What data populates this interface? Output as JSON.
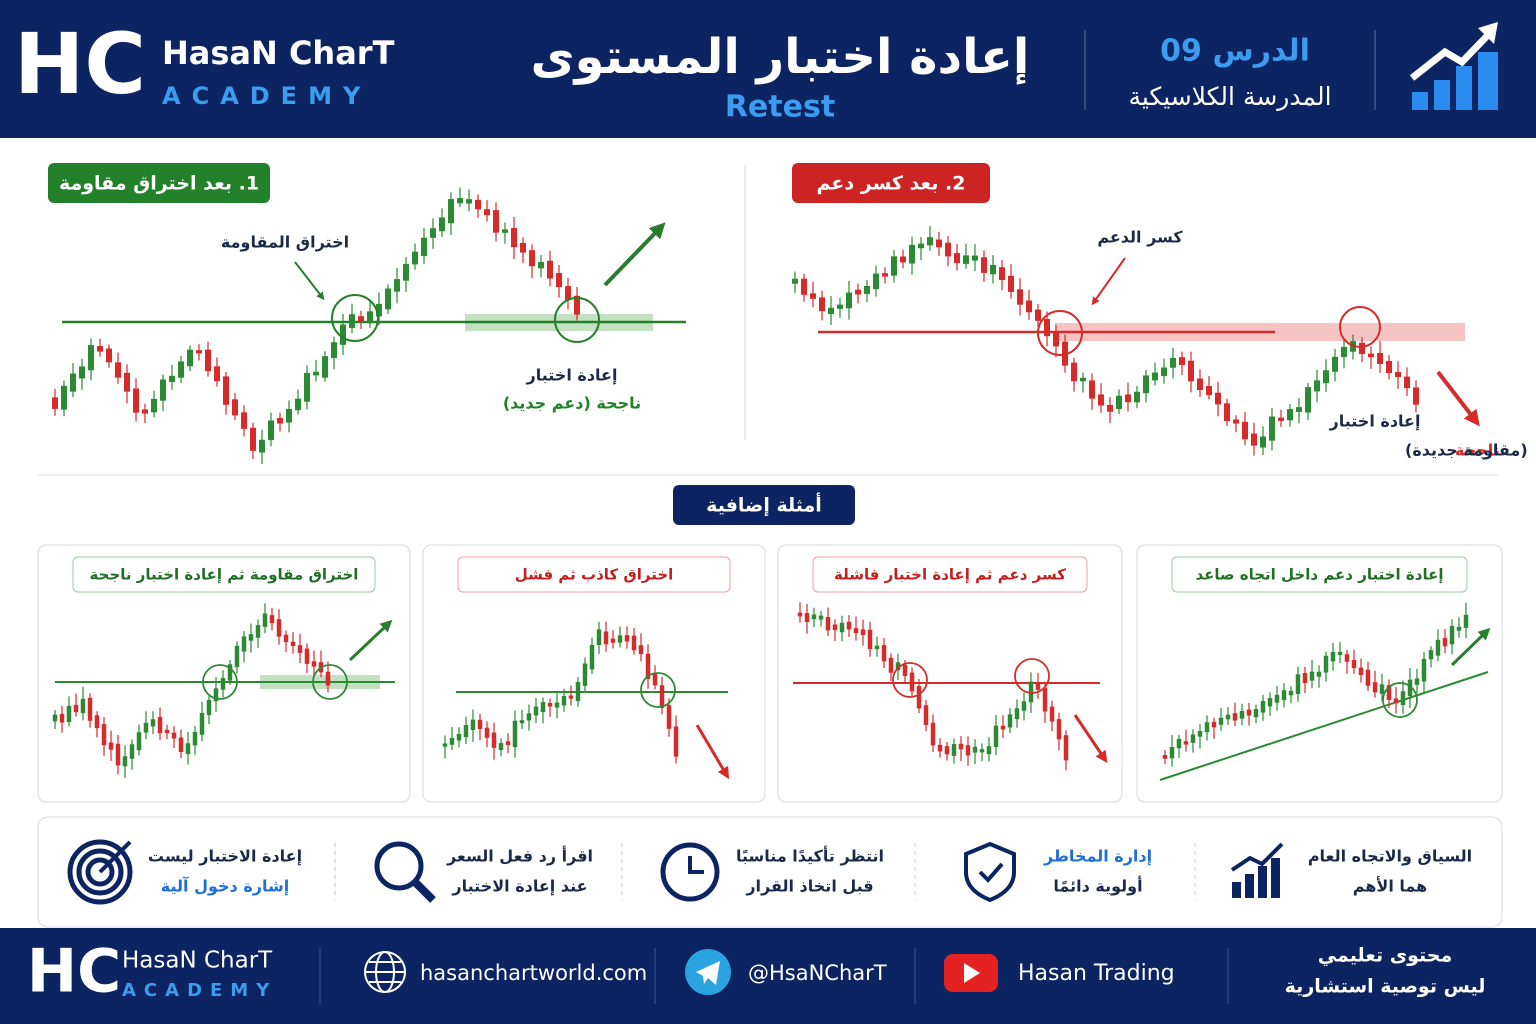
{
  "header": {
    "logo": "HC",
    "brand": "HasaN CharT",
    "academy": "ACADEMY",
    "title": "إعادة اختبار المستوى",
    "subtitle": "Retest",
    "lesson": "الدرس 09",
    "school": "المدرسة الكلاسيكية"
  },
  "panels": [
    {
      "badge": "1. بعد اختراق مقاومة",
      "annotation": "اختراق المقاومة",
      "retest": "إعادة اختبار",
      "result": "ناجحة (دعم جديد)"
    },
    {
      "badge": "2. بعد كسر دعم",
      "annotation": "كسر الدعم",
      "retest": "إعادة اختبار",
      "result": "ناجحة",
      "result_note": "(مقاومة جديدة)"
    }
  ],
  "examples_title": "أمثلة إضافية",
  "examples": [
    "اختراق مقاومة ثم إعادة اختبار ناجحة",
    "اختراق كاذب ثم فشل",
    "كسر دعم ثم إعادة اختبار فاشلة",
    "إعادة اختبار دعم داخل اتجاه صاعد"
  ],
  "tips": [
    [
      "إعادة الاختبار ليست",
      "إشارة دخول آلية"
    ],
    [
      "اقرأ رد فعل السعر",
      "عند إعادة الاختبار"
    ],
    [
      "انتظر تأكيدًا مناسبًا",
      "قبل اتخاذ القرار"
    ],
    [
      "إدارة المخاطر",
      "أولوية دائمًا"
    ],
    [
      "السياق والاتجاه العام",
      "هما الأهم"
    ]
  ],
  "footer": {
    "logo": "HC",
    "brand": "HasaN CharT",
    "academy": "ACADEMY",
    "website": "hasanchartworld.com",
    "telegram": "@HsaNCharT",
    "youtube": "Hasan Trading",
    "note_1": "محتوى تعليمي",
    "note_2": "ليس توصية استشارية"
  }
}
